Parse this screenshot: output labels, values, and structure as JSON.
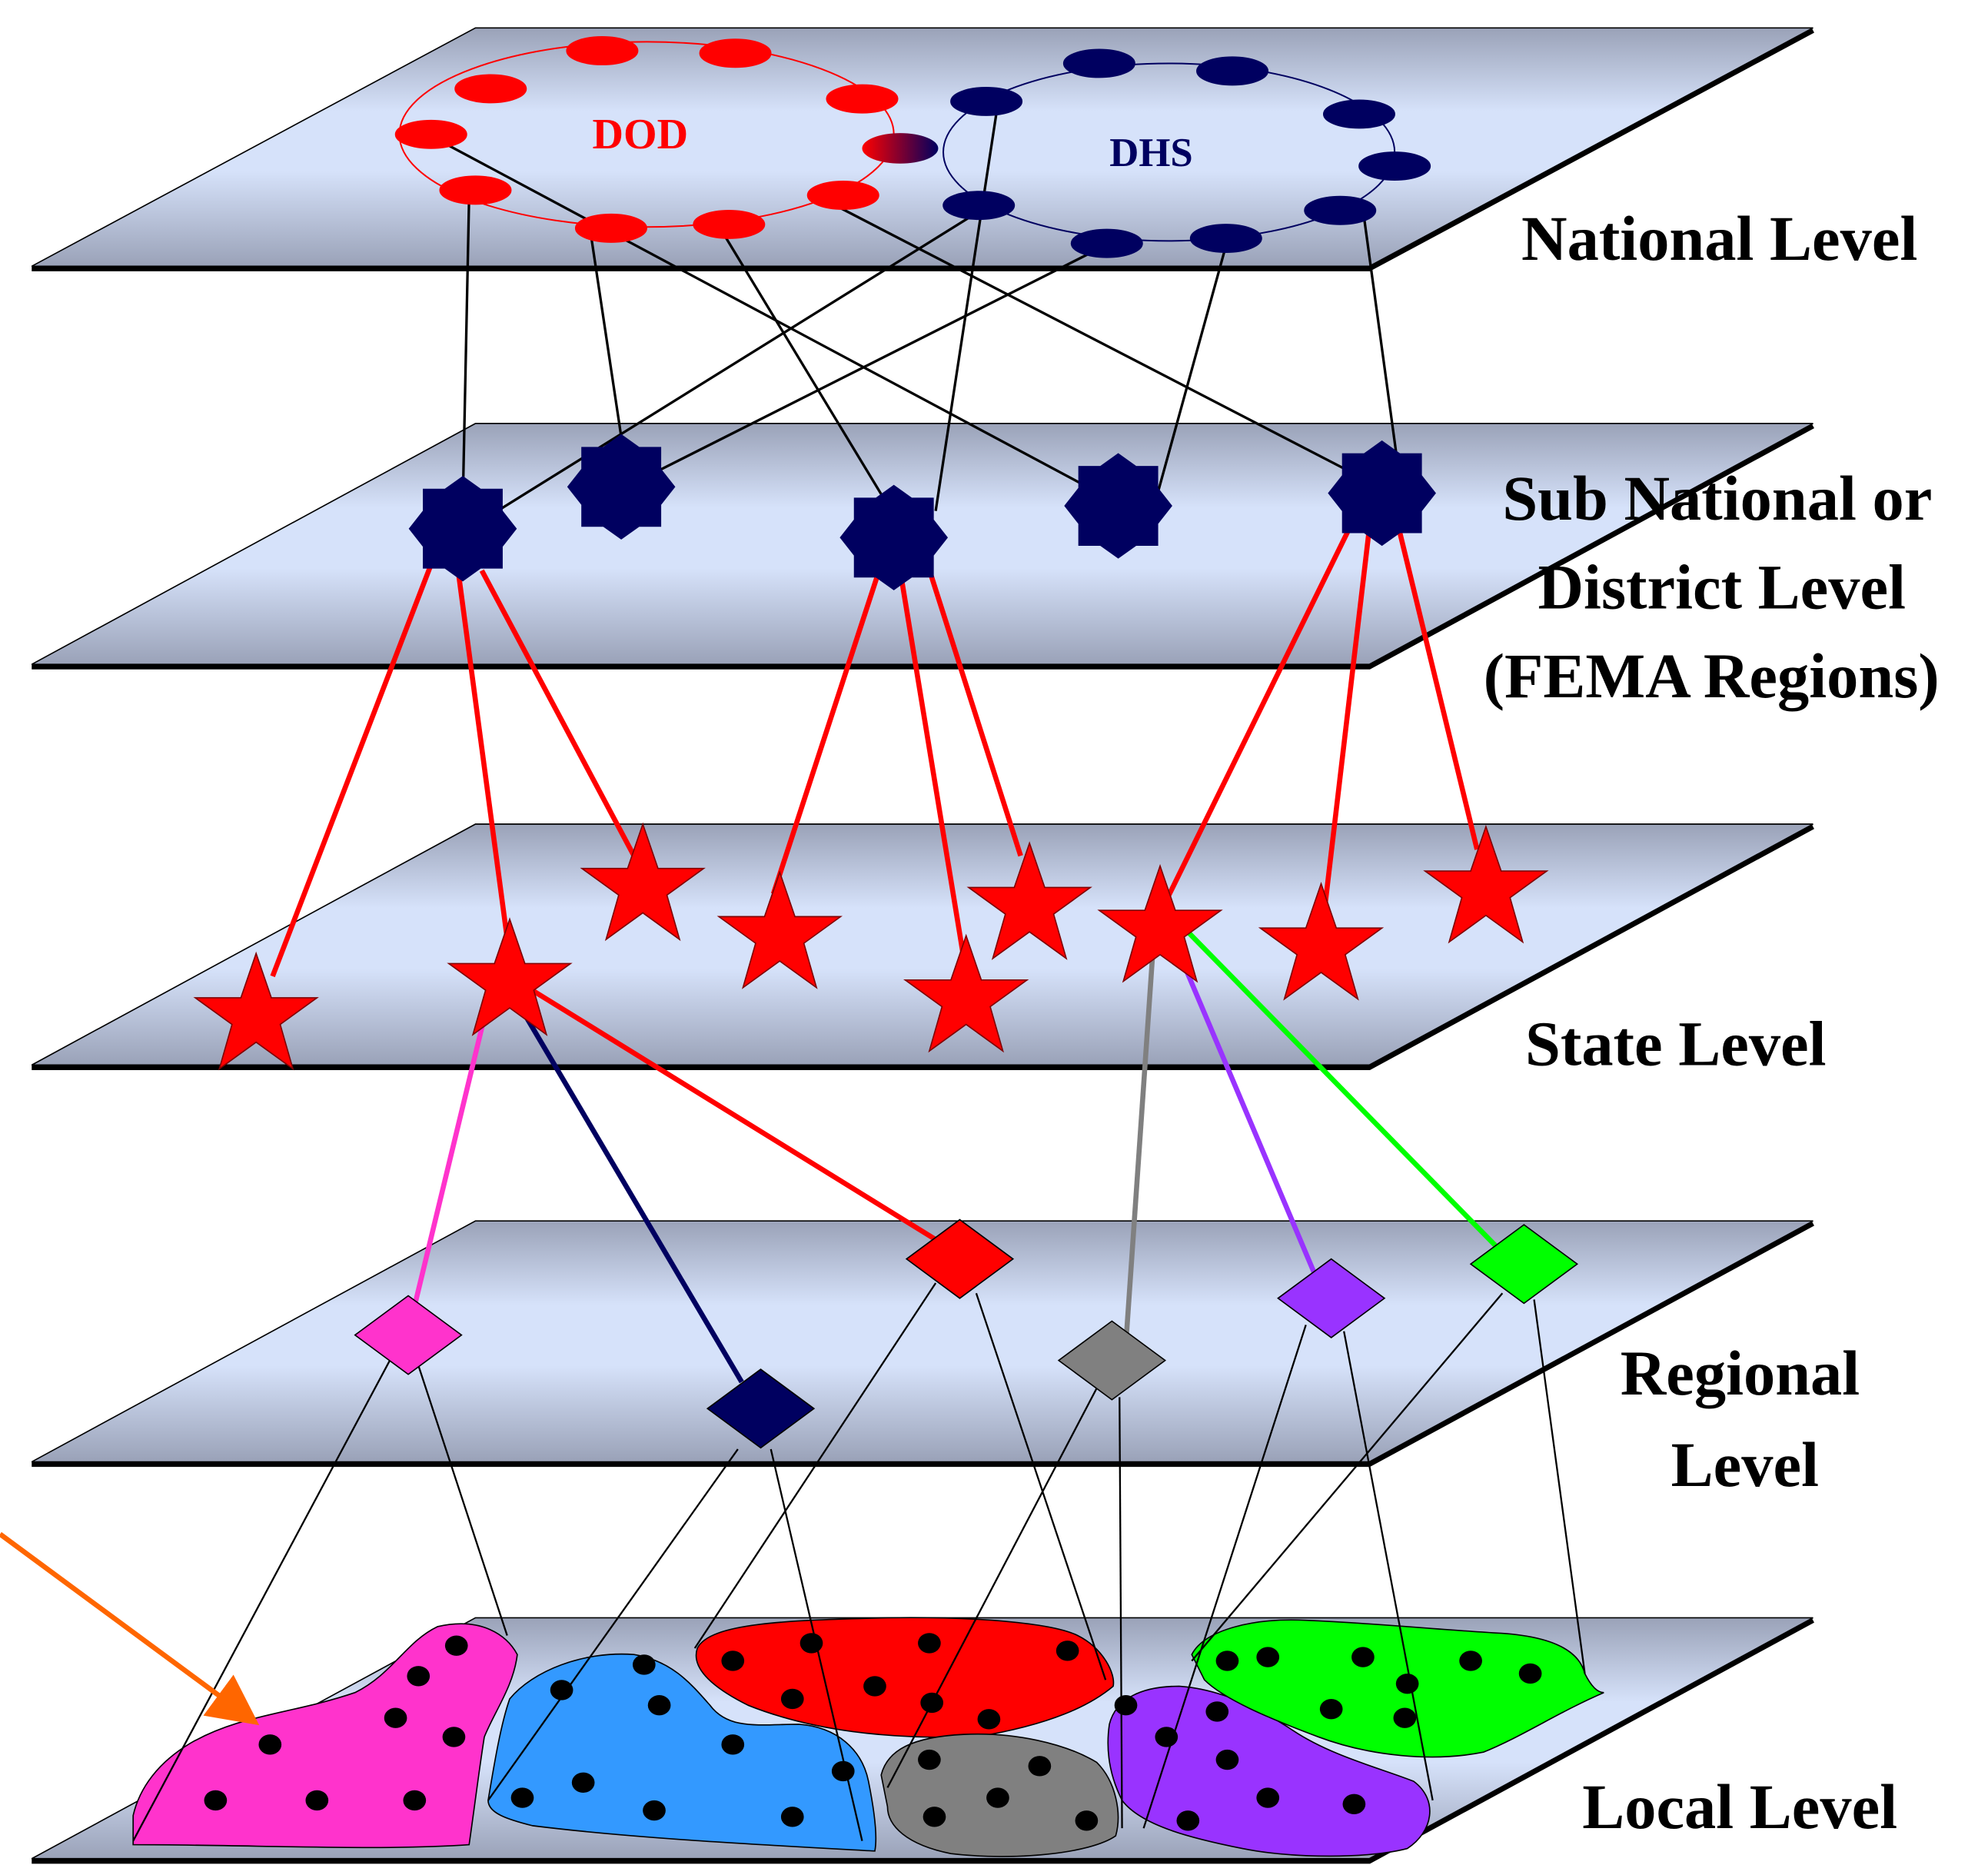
{
  "levels": {
    "national": "National Level",
    "subnational_1": "Sub National or",
    "subnational_2": "District Level",
    "subnational_3": "(FEMA Regions)",
    "state": "State Level",
    "regional_1": "Regional",
    "regional_2": "Level",
    "local": "Local Level"
  },
  "clusters": {
    "dod": "DOD",
    "dhs": "DHS"
  },
  "colors": {
    "plane_light": "#d6e2fa",
    "plane_dark": "#9aa2b8",
    "dod": "#ff0000",
    "dhs": "#000060",
    "state_star": "#ff0000",
    "arrow": "#ff6600",
    "pink": "#ff33cc",
    "blue": "#3399ff",
    "red": "#ff0000",
    "gray": "#808080",
    "purple": "#9933ff",
    "green": "#00ff00",
    "navy": "#000060"
  }
}
